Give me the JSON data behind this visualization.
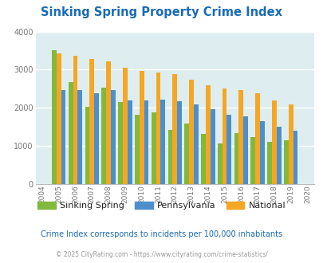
{
  "title": "Sinking Spring Property Crime Index",
  "years": [
    2004,
    2005,
    2006,
    2007,
    2008,
    2009,
    2010,
    2011,
    2012,
    2013,
    2014,
    2015,
    2016,
    2017,
    2018,
    2019,
    2020
  ],
  "sinking_spring": [
    null,
    3520,
    2670,
    2030,
    2520,
    2150,
    1820,
    1880,
    1420,
    1580,
    1310,
    1060,
    1340,
    1230,
    1100,
    1140,
    null
  ],
  "pennsylvania": [
    null,
    2460,
    2460,
    2390,
    2460,
    2200,
    2200,
    2210,
    2170,
    2080,
    1960,
    1810,
    1770,
    1660,
    1510,
    1390,
    null
  ],
  "national": [
    null,
    3430,
    3360,
    3280,
    3220,
    3050,
    2960,
    2920,
    2880,
    2730,
    2600,
    2500,
    2460,
    2380,
    2200,
    2100,
    null
  ],
  "colors": {
    "sinking_spring": "#82b83c",
    "pennsylvania": "#4d8fcc",
    "national": "#f5a623"
  },
  "bg_color": "#deeef0",
  "ylim": [
    0,
    4000
  ],
  "yticks": [
    0,
    1000,
    2000,
    3000,
    4000
  ],
  "subtitle": "Crime Index corresponds to incidents per 100,000 inhabitants",
  "footer": "© 2025 CityRating.com - https://www.cityrating.com/crime-statistics/",
  "title_color": "#1a6bb5",
  "subtitle_color": "#1a6bb5",
  "footer_color": "#999999",
  "legend_text_color": "#222222"
}
